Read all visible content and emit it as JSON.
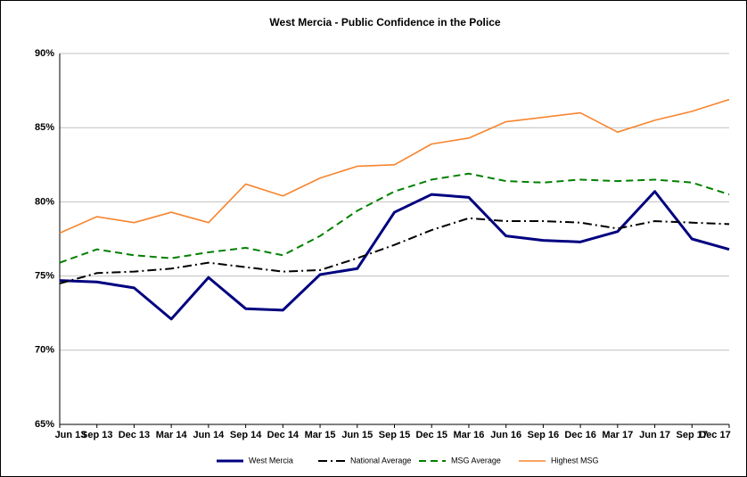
{
  "chart_data": {
    "type": "line",
    "title": "West Mercia - Public Confidence in the Police",
    "categories": [
      "Jun 13",
      "Sep 13",
      "Dec 13",
      "Mar 14",
      "Jun 14",
      "Sep 14",
      "Dec 14",
      "Mar 15",
      "Jun 15",
      "Sep 15",
      "Dec 15",
      "Mar 16",
      "Jun 16",
      "Sep 16",
      "Dec 16",
      "Mar 17",
      "Jun 17",
      "Sep 17",
      "Dec 17"
    ],
    "series": [
      {
        "name": "West Mercia",
        "color": "#000080",
        "line_style": "solid",
        "values": [
          74.7,
          74.6,
          74.2,
          72.1,
          74.9,
          72.8,
          72.7,
          75.1,
          75.5,
          79.3,
          80.5,
          80.3,
          77.7,
          77.4,
          77.3,
          78.0,
          80.7,
          77.5,
          76.8
        ]
      },
      {
        "name": "National Average",
        "color": "#000000",
        "line_style": "dashdot",
        "values": [
          74.5,
          75.2,
          75.3,
          75.5,
          75.9,
          75.6,
          75.3,
          75.4,
          76.2,
          77.1,
          78.1,
          78.9,
          78.7,
          78.7,
          78.6,
          78.2,
          78.7,
          78.6,
          78.5
        ]
      },
      {
        "name": "MSG Average",
        "color": "#008000",
        "line_style": "dashed",
        "values": [
          75.9,
          76.8,
          76.4,
          76.2,
          76.6,
          76.9,
          76.4,
          77.7,
          79.4,
          80.7,
          81.5,
          81.9,
          81.4,
          81.3,
          81.5,
          81.4,
          81.5,
          81.3,
          80.5
        ]
      },
      {
        "name": "Highest MSG",
        "color": "#f7852e",
        "line_style": "solid",
        "values": [
          77.9,
          79.0,
          78.6,
          79.3,
          78.6,
          81.2,
          80.4,
          81.6,
          82.4,
          82.5,
          83.9,
          84.3,
          85.4,
          85.7,
          86.0,
          84.7,
          85.5,
          86.1,
          86.9
        ]
      }
    ],
    "ylim": [
      65,
      90
    ],
    "yticks": [
      {
        "value": 65,
        "label": "65%"
      },
      {
        "value": 70,
        "label": "70%"
      },
      {
        "value": 75,
        "label": "75%"
      },
      {
        "value": 80,
        "label": "80%"
      },
      {
        "value": 85,
        "label": "85%"
      },
      {
        "value": 90,
        "label": "90%"
      }
    ],
    "grid": true,
    "legend": "bottom"
  }
}
